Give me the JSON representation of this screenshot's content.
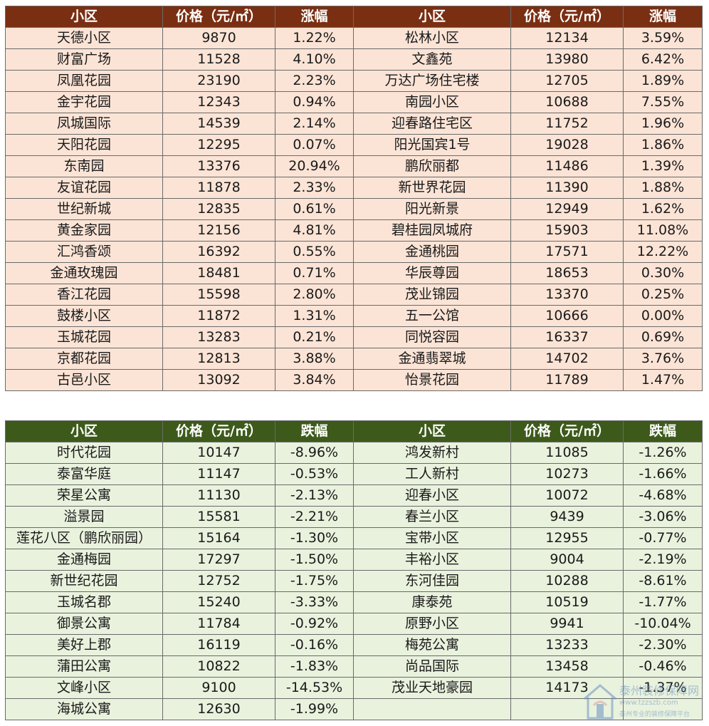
{
  "rising": {
    "headers": [
      "小区",
      "价格（元/㎡）",
      "涨幅",
      "小区",
      "价格（元/㎡）",
      "涨幅"
    ],
    "rows": [
      [
        "天德小区",
        "9870",
        "1.22%",
        "松林小区",
        "12134",
        "3.59%"
      ],
      [
        "财富广场",
        "11528",
        "4.10%",
        "文鑫苑",
        "13980",
        "6.42%"
      ],
      [
        "凤凰花园",
        "23190",
        "2.23%",
        "万达广场住宅楼",
        "12705",
        "1.89%"
      ],
      [
        "金宇花园",
        "12343",
        "0.94%",
        "南园小区",
        "10688",
        "7.55%"
      ],
      [
        "凤城国际",
        "14539",
        "2.14%",
        "迎春路住宅区",
        "11752",
        "1.96%"
      ],
      [
        "天阳花园",
        "12295",
        "0.07%",
        "阳光国宾1号",
        "19028",
        "1.86%"
      ],
      [
        "东南园",
        "13376",
        "20.94%",
        "鹏欣丽都",
        "11486",
        "1.39%"
      ],
      [
        "友谊花园",
        "11878",
        "2.33%",
        "新世界花园",
        "11390",
        "1.88%"
      ],
      [
        "世纪新城",
        "12835",
        "0.61%",
        "阳光新景",
        "12949",
        "1.62%"
      ],
      [
        "黄金家园",
        "12156",
        "4.81%",
        "碧桂园凤城府",
        "15903",
        "11.08%"
      ],
      [
        "汇鸿香颂",
        "16392",
        "0.55%",
        "金通桃园",
        "17571",
        "12.22%"
      ],
      [
        "金通玫瑰园",
        "18481",
        "0.71%",
        "华辰尊园",
        "18653",
        "0.30%"
      ],
      [
        "香江花园",
        "15598",
        "2.80%",
        "茂业锦园",
        "13370",
        "0.25%"
      ],
      [
        "鼓楼小区",
        "11872",
        "1.31%",
        "五一公馆",
        "10666",
        "0.00%"
      ],
      [
        "玉城花园",
        "13283",
        "0.21%",
        "同悦容园",
        "16337",
        "0.69%"
      ],
      [
        "京都花园",
        "12813",
        "3.88%",
        "金通翡翠城",
        "14702",
        "3.76%"
      ],
      [
        "古邑小区",
        "13092",
        "3.84%",
        "怡景花园",
        "11789",
        "1.47%"
      ]
    ]
  },
  "falling": {
    "headers": [
      "小区",
      "价格（元/㎡）",
      "跌幅",
      "小区",
      "价格（元/㎡）",
      "跌幅"
    ],
    "rows": [
      [
        "时代花园",
        "10147",
        "-8.96%",
        "鸿发新村",
        "11085",
        "-1.26%"
      ],
      [
        "泰富华庭",
        "11147",
        "-0.53%",
        "工人新村",
        "10273",
        "-1.66%"
      ],
      [
        "荣星公寓",
        "11130",
        "-2.13%",
        "迎春小区",
        "10072",
        "-4.68%"
      ],
      [
        "溢景园",
        "15581",
        "-2.21%",
        "春兰小区",
        "9439",
        "-3.06%"
      ],
      [
        "莲花八区（鹏欣丽园）",
        "15164",
        "-1.30%",
        "宝带小区",
        "12955",
        "-0.77%"
      ],
      [
        "金通梅园",
        "17297",
        "-1.50%",
        "丰裕小区",
        "9004",
        "-2.19%"
      ],
      [
        "新世纪花园",
        "12752",
        "-1.75%",
        "东河佳园",
        "10288",
        "-8.61%"
      ],
      [
        "玉城名郡",
        "15240",
        "-3.33%",
        "康泰苑",
        "10519",
        "-1.77%"
      ],
      [
        "御景公寓",
        "11784",
        "-0.92%",
        "原野小区",
        "9941",
        "-10.04%"
      ],
      [
        "美好上郡",
        "16119",
        "-0.16%",
        "梅苑公寓",
        "13233",
        "-2.30%"
      ],
      [
        "蒲田公寓",
        "10822",
        "-1.83%",
        "尚品国际",
        "13458",
        "-0.46%"
      ],
      [
        "文峰小区",
        "9100",
        "-14.53%",
        "茂业天地豪园",
        "14173",
        "-1.37%"
      ],
      [
        "海城公寓",
        "12630",
        "-1.99%",
        "",
        "",
        ""
      ]
    ]
  },
  "watermark": {
    "line1": "泰州装修保障网",
    "line2": "www.tzzszb.com",
    "line3": "泰州专业的装修保障平台",
    "icon": "house-logo-icon"
  },
  "colors": {
    "rising_header_bg": "#7a2f12",
    "rising_row_bg": "#fbe4d6",
    "falling_header_bg": "#3d5a1b",
    "falling_row_bg": "#e9f2dd"
  }
}
